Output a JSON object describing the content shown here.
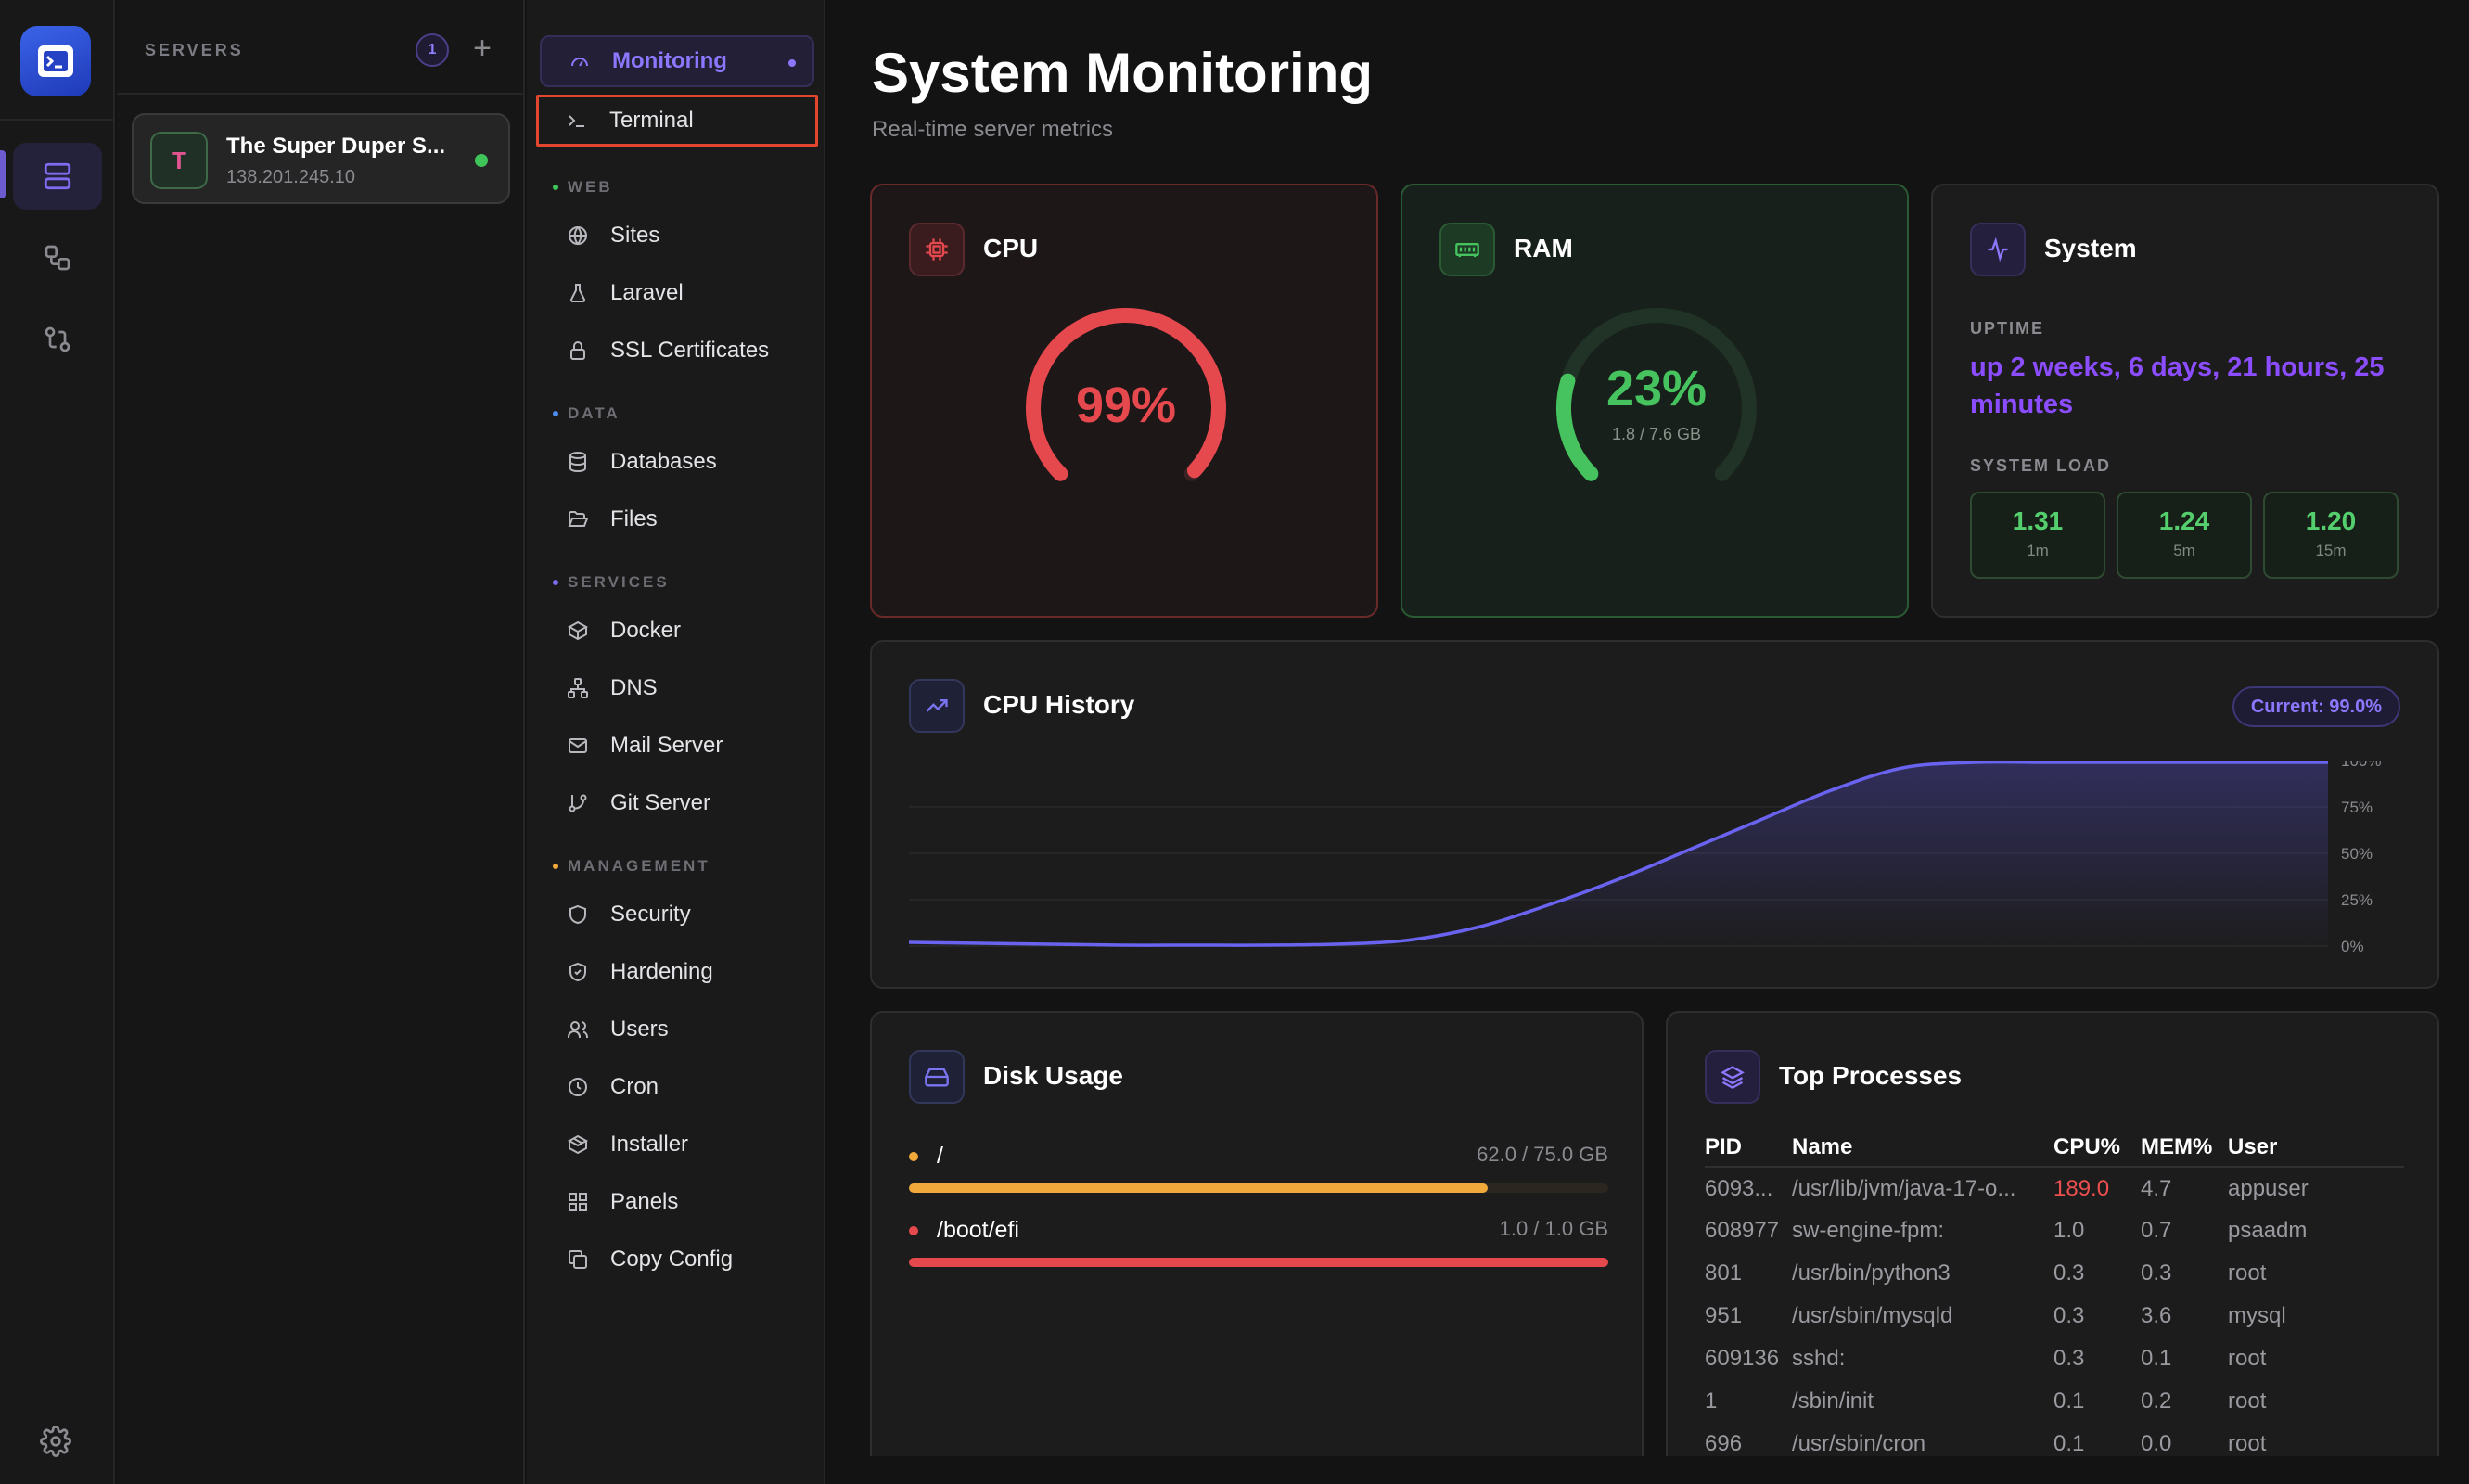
{
  "servers": {
    "title": "SERVERS",
    "count": "1",
    "add_label": "+",
    "items": [
      {
        "avatar": "T",
        "name": "The Super Duper S...",
        "ip": "138.201.245.10",
        "status_color": "#3fc45a"
      }
    ]
  },
  "nav": {
    "monitoring": "Monitoring",
    "terminal": "Terminal",
    "sections": {
      "web": "WEB",
      "data": "DATA",
      "services": "SERVICES",
      "management": "MANAGEMENT"
    },
    "web": [
      "Sites",
      "Laravel",
      "SSL Certificates"
    ],
    "data": [
      "Databases",
      "Files"
    ],
    "services": [
      "Docker",
      "DNS",
      "Mail Server",
      "Git Server"
    ],
    "management": [
      "Security",
      "Hardening",
      "Users",
      "Cron",
      "Installer",
      "Panels",
      "Copy Config"
    ]
  },
  "page": {
    "title": "System Monitoring",
    "subtitle": "Real-time server metrics"
  },
  "cpu": {
    "title": "CPU",
    "value": "99%",
    "percent": 99,
    "color": "#e5484d"
  },
  "ram": {
    "title": "RAM",
    "value": "23%",
    "percent": 23,
    "detail": "1.8 / 7.6 GB",
    "color": "#46c35f"
  },
  "system": {
    "title": "System",
    "uptime_label": "UPTIME",
    "uptime": "up 2 weeks, 6 days, 21 hours, 25 minutes",
    "load_label": "SYSTEM LOAD",
    "loads": [
      {
        "value": "1.31",
        "label": "1m"
      },
      {
        "value": "1.24",
        "label": "5m"
      },
      {
        "value": "1.20",
        "label": "15m"
      }
    ]
  },
  "cpu_history": {
    "title": "CPU History",
    "current": "Current: 99.0%"
  },
  "chart_data": {
    "type": "area",
    "title": "CPU History",
    "x": [
      0,
      1,
      2,
      3,
      4,
      5,
      6,
      7,
      8,
      9,
      10,
      11,
      12,
      13,
      14,
      15,
      16,
      17,
      18,
      19,
      20
    ],
    "series": [
      {
        "values": [
          2,
          1.5,
          1,
          0.5,
          0.5,
          0.5,
          1,
          3,
          10,
          22,
          36,
          52,
          68,
          84,
          96,
          99,
          99,
          99,
          99,
          99,
          99
        ]
      }
    ],
    "y_ticks": [
      "100%",
      "75%",
      "50%",
      "25%",
      "0%"
    ],
    "ylim": [
      0,
      100
    ],
    "grid": true,
    "line_color": "#6a63f0"
  },
  "disk": {
    "title": "Disk Usage",
    "items": [
      {
        "name": "/",
        "size": "62.0 / 75.0 GB",
        "fraction": 0.827,
        "color": "#f0a93a"
      },
      {
        "name": "/boot/efi",
        "size": "1.0 / 1.0 GB",
        "fraction": 1.0,
        "color": "#e5484d"
      }
    ]
  },
  "processes": {
    "title": "Top Processes",
    "headers": [
      "PID",
      "Name",
      "CPU%",
      "MEM%",
      "User"
    ],
    "rows": [
      [
        "6093...",
        "/usr/lib/jvm/java-17-o...",
        "189.0",
        "4.7",
        "appuser"
      ],
      [
        "608977",
        "sw-engine-fpm:",
        "1.0",
        "0.7",
        "psaadm"
      ],
      [
        "801",
        "/usr/bin/python3",
        "0.3",
        "0.3",
        "root"
      ],
      [
        "951",
        "/usr/sbin/mysqld",
        "0.3",
        "3.6",
        "mysql"
      ],
      [
        "609136",
        "sshd:",
        "0.3",
        "0.1",
        "root"
      ],
      [
        "1",
        "/sbin/init",
        "0.1",
        "0.2",
        "root"
      ],
      [
        "696",
        "/usr/sbin/cron",
        "0.1",
        "0.0",
        "root"
      ]
    ]
  }
}
